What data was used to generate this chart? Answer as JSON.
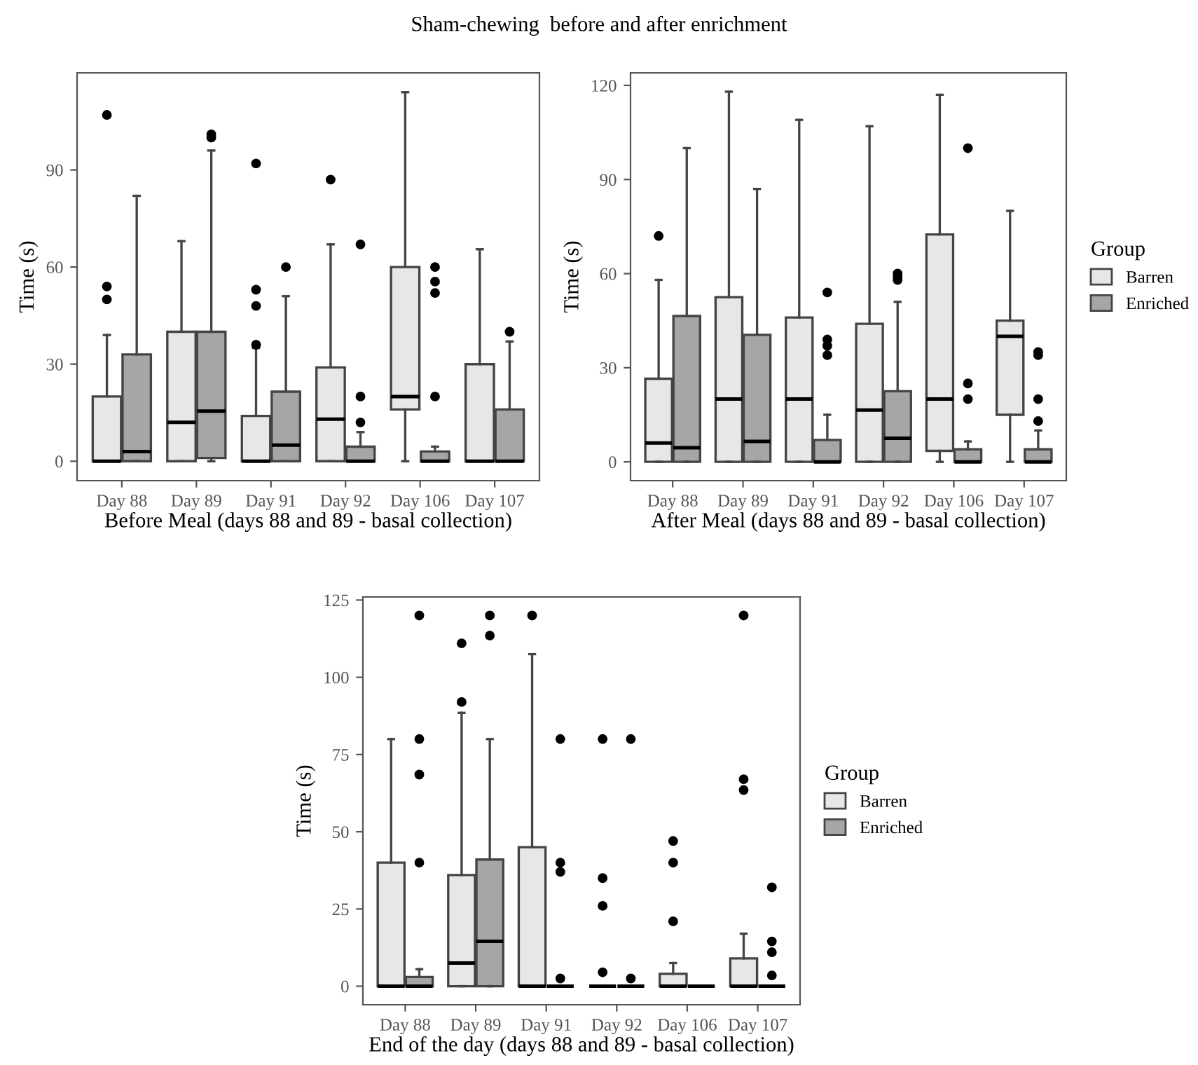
{
  "chart_data": [
    {
      "type": "box",
      "title": "Sham-chewing  before and after enrichment",
      "xlabel": "Before Meal (days 88 and 89 - basal collection)",
      "ylabel": "Time (s)",
      "categories": [
        "Day 88",
        "Day 89",
        "Day 91",
        "Day 92",
        "Day 106",
        "Day 107"
      ],
      "ylim": [
        -6,
        120
      ],
      "yticks": [
        0,
        30,
        60,
        90
      ],
      "grid": false,
      "series": [
        {
          "color": "#e8e6e8",
          "boxes": [
            {
              "low": 0,
              "q1": 0,
              "median": 0,
              "q3": 20,
              "high": 39,
              "outliers": [
                50,
                54,
                107
              ]
            },
            {
              "low": 0,
              "q1": 0,
              "median": 12,
              "q3": 40,
              "high": 68
            },
            {
              "low": 0,
              "q1": 0,
              "median": 0,
              "q3": 14,
              "high": 35,
              "outliers": [
                36,
                48,
                53,
                92
              ]
            },
            {
              "low": 0,
              "q1": 0,
              "median": 13,
              "q3": 29,
              "high": 67,
              "outliers": [
                87
              ]
            },
            {
              "low": 0,
              "q1": 16,
              "median": 20,
              "q3": 60,
              "high": 114
            },
            {
              "low": 0,
              "q1": 0,
              "median": 0,
              "q3": 30,
              "high": 65.5
            }
          ]
        },
        {
          "color": "#a6a6a6",
          "boxes": [
            {
              "low": 0,
              "q1": 0,
              "median": 3,
              "q3": 33,
              "high": 82
            },
            {
              "low": 0,
              "q1": 1,
              "median": 15.5,
              "q3": 40,
              "high": 96,
              "outliers": [
                100,
                101
              ]
            },
            {
              "low": 0,
              "q1": 0,
              "median": 5,
              "q3": 21.5,
              "high": 51,
              "outliers": [
                60
              ]
            },
            {
              "low": 0,
              "q1": 0,
              "median": 0,
              "q3": 4.5,
              "high": 9,
              "outliers": [
                12,
                20,
                67
              ]
            },
            {
              "low": 0,
              "q1": 0,
              "median": 0,
              "q3": 3,
              "high": 4.5,
              "outliers": [
                20,
                52,
                55.5,
                60
              ]
            },
            {
              "low": 0,
              "q1": 0,
              "median": 0,
              "q3": 16,
              "high": 37,
              "outliers": [
                40
              ]
            }
          ]
        }
      ]
    },
    {
      "type": "box",
      "xlabel": "After Meal (days 88 and 89 - basal collection)",
      "ylabel": "Time (s)",
      "legend_title": "Group",
      "categories": [
        "Day 88",
        "Day 89",
        "Day 91",
        "Day 92",
        "Day 106",
        "Day 107"
      ],
      "ylim": [
        -6,
        124
      ],
      "yticks": [
        0,
        30,
        60,
        90,
        120
      ],
      "grid": false,
      "legend": "right",
      "series": [
        {
          "name": "Barren",
          "color": "#e8e6e8",
          "boxes": [
            {
              "low": 0,
              "q1": 0,
              "median": 6,
              "q3": 26.5,
              "high": 58,
              "outliers": [
                72
              ]
            },
            {
              "low": 0,
              "q1": 0,
              "median": 20,
              "q3": 52.5,
              "high": 118
            },
            {
              "low": 0,
              "q1": 0,
              "median": 20,
              "q3": 46,
              "high": 109
            },
            {
              "low": 0,
              "q1": 0,
              "median": 16.5,
              "q3": 44,
              "high": 107
            },
            {
              "low": 0,
              "q1": 3.5,
              "median": 20,
              "q3": 72.5,
              "high": 117
            },
            {
              "low": 0,
              "q1": 15,
              "median": 40,
              "q3": 45,
              "high": 80
            }
          ]
        },
        {
          "name": "Enriched",
          "color": "#a6a6a6",
          "boxes": [
            {
              "low": 0,
              "q1": 0,
              "median": 4.5,
              "q3": 46.5,
              "high": 100
            },
            {
              "low": 0,
              "q1": 0,
              "median": 6.5,
              "q3": 40.5,
              "high": 87
            },
            {
              "low": 0,
              "q1": 0,
              "median": 0,
              "q3": 7,
              "high": 15,
              "outliers": [
                34,
                37,
                39,
                54
              ]
            },
            {
              "low": 0,
              "q1": 0,
              "median": 7.5,
              "q3": 22.5,
              "high": 51,
              "outliers": [
                58,
                59,
                60
              ]
            },
            {
              "low": 0,
              "q1": 0,
              "median": 0,
              "q3": 4,
              "high": 6.5,
              "outliers": [
                20,
                25,
                100
              ]
            },
            {
              "low": 0,
              "q1": 0,
              "median": 0,
              "q3": 4,
              "high": 10,
              "outliers": [
                13,
                20,
                34,
                35
              ]
            }
          ]
        }
      ]
    },
    {
      "type": "box",
      "xlabel": "End of the day (days 88 and 89 - basal collection)",
      "ylabel": "Time (s)",
      "legend_title": "Group",
      "categories": [
        "Day 88",
        "Day 89",
        "Day 91",
        "Day 92",
        "Day 106",
        "Day 107"
      ],
      "ylim": [
        -6,
        126
      ],
      "yticks": [
        0,
        25,
        50,
        75,
        100,
        125
      ],
      "grid": false,
      "legend": "right",
      "series": [
        {
          "name": "Barren",
          "color": "#e8e6e8",
          "boxes": [
            {
              "low": 0,
              "q1": 0,
              "median": 0,
              "q3": 40,
              "high": 80
            },
            {
              "low": 0,
              "q1": 0,
              "median": 7.5,
              "q3": 36,
              "high": 88.5,
              "outliers": [
                92,
                111
              ]
            },
            {
              "low": 0,
              "q1": 0,
              "median": 0,
              "q3": 45,
              "high": 107.5,
              "outliers": [
                120
              ]
            },
            {
              "low": 0,
              "q1": 0,
              "median": 0,
              "q3": 0,
              "high": 0,
              "outliers": [
                4.5,
                26,
                35,
                80
              ]
            },
            {
              "low": 0,
              "q1": 0,
              "median": 0,
              "q3": 4,
              "high": 7.5,
              "outliers": [
                21,
                40,
                47
              ]
            },
            {
              "low": 0,
              "q1": 0,
              "median": 0,
              "q3": 9,
              "high": 17,
              "outliers": [
                63.5,
                67,
                120
              ]
            }
          ]
        },
        {
          "name": "Enriched",
          "color": "#a6a6a6",
          "boxes": [
            {
              "low": 0,
              "q1": 0,
              "median": 0,
              "q3": 3,
              "high": 5.5,
              "outliers": [
                40,
                68.5,
                80,
                120
              ]
            },
            {
              "low": 0,
              "q1": 0,
              "median": 14.5,
              "q3": 41,
              "high": 80,
              "outliers": [
                113.5,
                120
              ]
            },
            {
              "low": 0,
              "q1": 0,
              "median": 0,
              "q3": 0,
              "high": 0,
              "outliers": [
                2.5,
                37,
                40,
                80
              ]
            },
            {
              "low": 0,
              "q1": 0,
              "median": 0,
              "q3": 0,
              "high": 0,
              "outliers": [
                2.5,
                80
              ]
            },
            {
              "low": 0,
              "q1": 0,
              "median": 0,
              "q3": 0,
              "high": 0
            },
            {
              "low": 0,
              "q1": 0,
              "median": 0,
              "q3": 0,
              "high": 0,
              "outliers": [
                3.5,
                11,
                14.5,
                32
              ]
            }
          ]
        }
      ]
    }
  ]
}
